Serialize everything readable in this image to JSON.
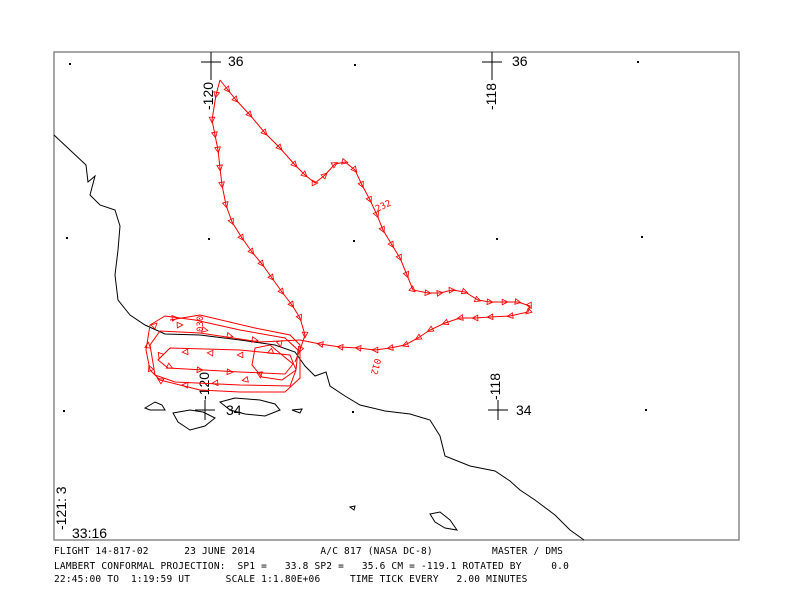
{
  "map": {
    "projection": "Lambert Conformal",
    "colors": {
      "track": "#ff0000",
      "coastline": "#000000",
      "frame": "#808080"
    },
    "grid_labels": {
      "lat_36_a": "36",
      "lon_120_top": "-120",
      "lat_36_b": "36",
      "lon_118_top": "-118",
      "lat_34_a": "34",
      "lon_120_bottom": "-120",
      "lat_34_b": "34",
      "lon_118_bottom": "-118"
    },
    "corner_labels": {
      "lon_corner": "-121: 3",
      "lat_corner": "33:16"
    },
    "track_time_labels": [
      "232",
      "012",
      "030"
    ]
  },
  "footer": {
    "line1": "FLIGHT 14-817-02      23 JUNE 2014           A/C 817 (NASA DC-8)          MASTER / DMS",
    "line2": "LAMBERT CONFORMAL PROJECTION:  SP1 =   33.8 SP2 =   35.6 CM = -119.1 ROTATED BY     0.0",
    "line3": "22:45:00 TO  1:19:59 UT      SCALE 1:1.80E+06     TIME TICK EVERY   2.00 MINUTES"
  }
}
